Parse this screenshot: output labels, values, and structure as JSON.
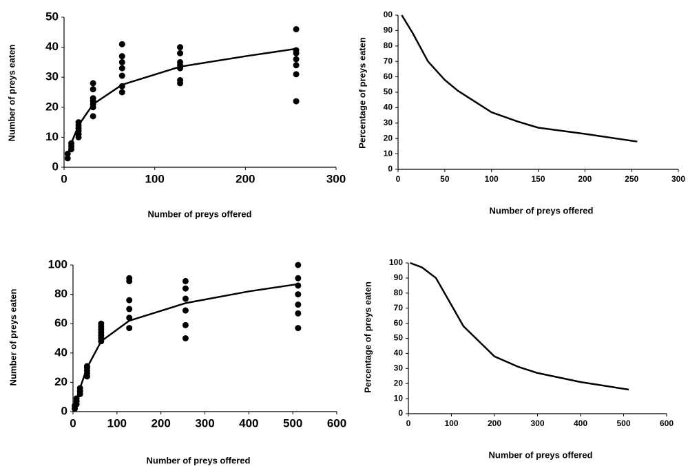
{
  "chart_data": [
    {
      "type": "scatter",
      "xlabel": "Number of preys offered",
      "ylabel": "Number of preys eaten",
      "xlim": [
        0,
        300
      ],
      "ylim": [
        0,
        50
      ],
      "xticks": [
        0,
        100,
        200,
        300
      ],
      "yticks": [
        0,
        10,
        20,
        30,
        40,
        50
      ],
      "series": [
        {
          "type": "scatter",
          "color": "#000000",
          "x": [
            4,
            4,
            8,
            8,
            8,
            16,
            16,
            16,
            16,
            16,
            16,
            32,
            32,
            32,
            32,
            32,
            32,
            32,
            64,
            64,
            64,
            64,
            64,
            64,
            64,
            128,
            128,
            128,
            128,
            128,
            128,
            128,
            256,
            256,
            256,
            256,
            256,
            256,
            256
          ],
          "values": [
            3,
            4.5,
            6,
            7,
            8,
            10,
            11,
            12,
            13,
            14,
            15,
            17,
            20,
            21,
            22,
            23,
            26,
            28,
            25,
            27,
            30.5,
            33,
            35,
            37,
            41,
            28,
            29,
            33,
            34,
            35,
            38,
            40,
            22,
            31,
            34,
            36,
            38,
            39,
            46
          ]
        },
        {
          "type": "line",
          "color": "#000000",
          "x": [
            4,
            8,
            16,
            32,
            64,
            128,
            200,
            256
          ],
          "values": [
            4,
            8,
            14,
            21,
            27.5,
            33.5,
            37,
            39.5
          ]
        }
      ]
    },
    {
      "type": "line",
      "xlabel": "Number of preys offered",
      "ylabel": "Percentage of preys eaten",
      "xlim": [
        0,
        300
      ],
      "ylim": [
        0,
        100
      ],
      "xticks": [
        0,
        50,
        100,
        150,
        200,
        250,
        300
      ],
      "yticks": [
        0,
        10,
        20,
        30,
        40,
        50,
        60,
        70,
        80,
        90,
        {
          "value": 100,
          "label": "00"
        }
      ],
      "series": [
        {
          "type": "line",
          "color": "#000000",
          "x": [
            4,
            16,
            32,
            50,
            64,
            100,
            128,
            150,
            200,
            256
          ],
          "values": [
            100,
            88,
            70,
            58,
            51,
            37,
            31,
            27,
            23,
            18
          ]
        }
      ]
    },
    {
      "type": "scatter",
      "xlabel": "Number of preys offered",
      "ylabel": "Number of preys eaten",
      "xlim": [
        0,
        600
      ],
      "ylim": [
        0,
        100
      ],
      "xticks": [
        0,
        100,
        200,
        300,
        400,
        500,
        600
      ],
      "yticks": [
        0,
        20,
        40,
        60,
        80,
        100
      ],
      "series": [
        {
          "type": "scatter",
          "color": "#000000",
          "x": [
            4,
            4,
            8,
            8,
            8,
            16,
            16,
            16,
            32,
            32,
            32,
            32,
            32,
            64,
            64,
            64,
            64,
            64,
            64,
            64,
            128,
            128,
            128,
            128,
            128,
            128,
            256,
            256,
            256,
            256,
            256,
            256,
            512,
            512,
            512,
            512,
            512,
            512,
            512
          ],
          "values": [
            2,
            4,
            5,
            7,
            9,
            12,
            14,
            16,
            24,
            26,
            28,
            30,
            31,
            48,
            50,
            52,
            54,
            56,
            58,
            60,
            57,
            64,
            70,
            76,
            89,
            91,
            50,
            59,
            69,
            77,
            84,
            89,
            57,
            67,
            73,
            80,
            86,
            91,
            100
          ]
        },
        {
          "type": "line",
          "color": "#000000",
          "x": [
            4,
            16,
            32,
            64,
            128,
            256,
            400,
            512
          ],
          "values": [
            4,
            16,
            30,
            48,
            62,
            74,
            82,
            87
          ]
        }
      ]
    },
    {
      "type": "line",
      "xlabel": "Number of preys offered",
      "ylabel": "Percentage of preys eaten",
      "xlim": [
        0,
        600
      ],
      "ylim": [
        0,
        100
      ],
      "xticks": [
        0,
        100,
        200,
        300,
        400,
        500,
        600
      ],
      "yticks": [
        0,
        10,
        20,
        30,
        40,
        50,
        60,
        70,
        80,
        90,
        100
      ],
      "series": [
        {
          "type": "line",
          "color": "#000000",
          "x": [
            4,
            32,
            64,
            100,
            128,
            200,
            256,
            300,
            400,
            512
          ],
          "values": [
            100,
            97,
            90,
            72,
            58,
            38,
            31,
            27,
            21,
            16
          ]
        }
      ]
    }
  ]
}
